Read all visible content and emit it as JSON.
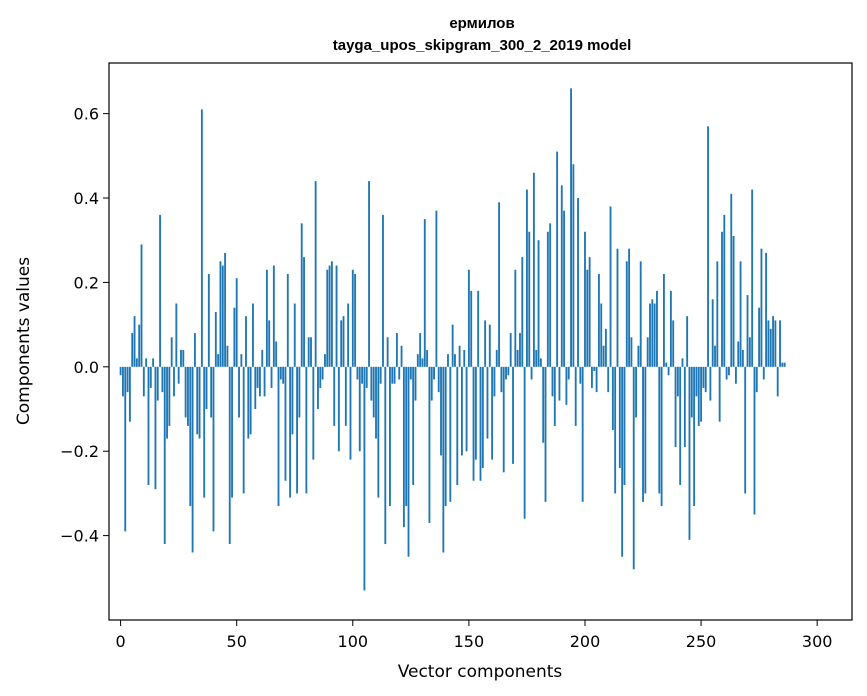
{
  "chart_data": {
    "type": "bar",
    "title": "ермилов",
    "subtitle": "tayga_upos_skipgram_300_2_2019 model",
    "xlabel": "Vector components",
    "ylabel": "Components values",
    "xlim": [
      -5,
      315
    ],
    "ylim": [
      -0.6,
      0.72
    ],
    "xticks": [
      0,
      50,
      100,
      150,
      200,
      250,
      300
    ],
    "yticks": [
      -0.4,
      -0.2,
      0.0,
      0.2,
      0.4,
      0.6
    ],
    "ytick_labels": [
      "−0.4",
      "−0.2",
      "0.0",
      "0.2",
      "0.4",
      "0.6"
    ],
    "grid": false,
    "bar_color": "#1f77b4",
    "values": [
      -0.02,
      -0.07,
      -0.39,
      -0.06,
      -0.13,
      0.08,
      0.12,
      0.02,
      0.1,
      0.29,
      -0.07,
      0.02,
      -0.28,
      -0.05,
      0.02,
      -0.29,
      -0.08,
      0.36,
      -0.06,
      -0.42,
      -0.17,
      -0.14,
      0.07,
      -0.07,
      0.15,
      -0.04,
      0.04,
      0.04,
      -0.12,
      -0.14,
      -0.33,
      -0.44,
      0.08,
      -0.16,
      -0.17,
      0.61,
      -0.31,
      -0.1,
      0.22,
      -0.12,
      -0.39,
      0.13,
      0.03,
      0.25,
      0.24,
      0.27,
      0.05,
      -0.42,
      -0.31,
      0.14,
      0.21,
      -0.12,
      0.03,
      -0.3,
      0.12,
      -0.17,
      -0.16,
      0.15,
      -0.1,
      -0.05,
      -0.07,
      0.04,
      -0.07,
      0.23,
      0.11,
      -0.05,
      0.24,
      0.06,
      -0.33,
      -0.03,
      -0.04,
      -0.27,
      0.22,
      -0.31,
      -0.16,
      0.15,
      -0.3,
      -0.12,
      0.34,
      0.26,
      -0.3,
      0.07,
      0.07,
      -0.22,
      0.44,
      -0.1,
      -0.05,
      -0.03,
      0.03,
      0.23,
      0.24,
      0.25,
      -0.14,
      0.24,
      -0.2,
      0.11,
      0.12,
      -0.14,
      0.15,
      -0.22,
      0.23,
      0.22,
      -0.03,
      -0.2,
      -0.04,
      -0.53,
      -0.05,
      0.44,
      -0.08,
      -0.12,
      -0.17,
      -0.31,
      -0.04,
      0.36,
      -0.42,
      0.07,
      -0.33,
      -0.04,
      -0.04,
      0.08,
      -0.03,
      0.05,
      -0.38,
      -0.33,
      -0.45,
      -0.03,
      -0.28,
      -0.08,
      0.03,
      0.08,
      0.02,
      0.35,
      0.04,
      -0.37,
      -0.08,
      -0.03,
      0.37,
      -0.06,
      -0.21,
      -0.44,
      -0.33,
      0.03,
      -0.32,
      0.1,
      0.03,
      -0.28,
      0.05,
      -0.21,
      0.04,
      -0.2,
      0.23,
      0.18,
      -0.27,
      -0.22,
      0.18,
      -0.27,
      -0.24,
      0.11,
      -0.17,
      0.1,
      -0.22,
      -0.07,
      0.04,
      0.39,
      -0.06,
      -0.25,
      -0.03,
      -0.02,
      0.08,
      -0.23,
      0.23,
      0.04,
      0.08,
      0.26,
      -0.36,
      0.42,
      0.32,
      -0.03,
      0.46,
      0.04,
      0.3,
      0.02,
      -0.18,
      -0.32,
      0.32,
      0.34,
      -0.07,
      -0.14,
      0.51,
      -0.08,
      0.43,
      0.37,
      -0.09,
      -0.03,
      0.66,
      0.48,
      -0.14,
      0.4,
      -0.04,
      -0.32,
      0.32,
      0.23,
      0.26,
      -0.05,
      -0.01,
      -0.06,
      0.22,
      0.15,
      0.05,
      0.09,
      -0.06,
      0.38,
      -0.15,
      -0.3,
      0.28,
      -0.24,
      -0.45,
      -0.28,
      0.25,
      0.28,
      0.07,
      -0.48,
      -0.12,
      0.05,
      0.25,
      -0.32,
      -0.3,
      0.07,
      0.15,
      0.16,
      0.15,
      0.18,
      -0.3,
      -0.33,
      0.22,
      0.01,
      -0.02,
      0.18,
      0.11,
      -0.19,
      -0.07,
      -0.28,
      0.02,
      -0.19,
      0.12,
      -0.41,
      -0.12,
      -0.33,
      -0.07,
      -0.14,
      -0.13,
      -0.05,
      -0.06,
      0.57,
      -0.08,
      0.16,
      0.05,
      0.25,
      -0.13,
      0.32,
      0.36,
      -0.03,
      -0.02,
      0.41,
      0.31,
      -0.04,
      0.06,
      0.25,
      0.04,
      -0.3,
      0.17,
      0.07,
      0.42,
      -0.35,
      -0.06,
      0.14,
      0.28,
      -0.03,
      0.27,
      0.11,
      0.09,
      0.12,
      0.11,
      -0.07,
      0.11,
      0.01,
      0.01
    ]
  }
}
